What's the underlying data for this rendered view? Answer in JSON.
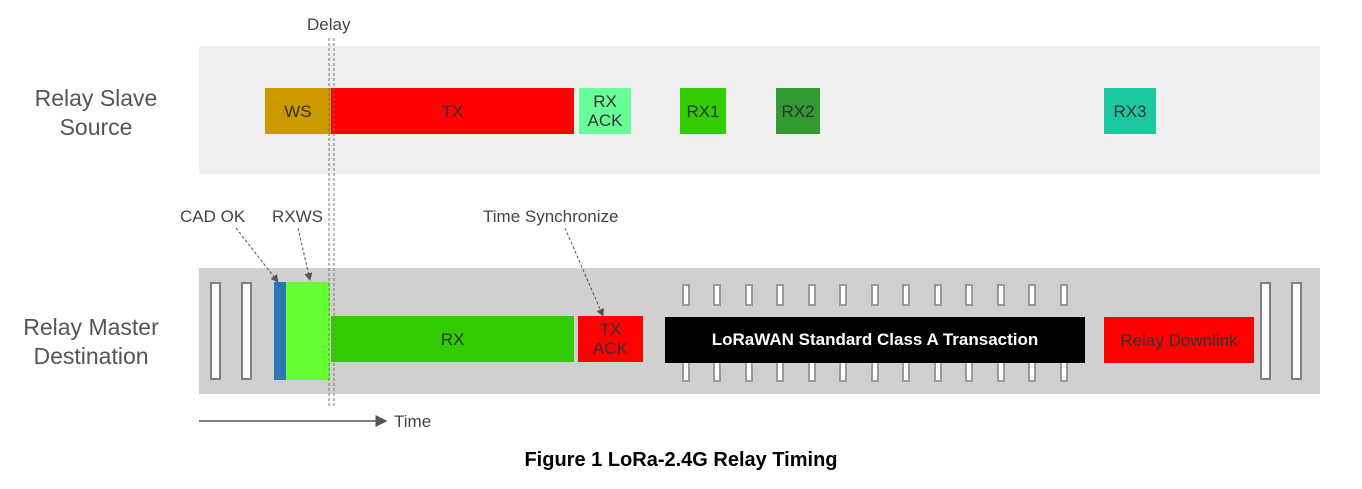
{
  "lanes": {
    "slave_label": "Relay Slave\nSource",
    "master_label": "Relay Master\nDestination"
  },
  "slave_boxes": {
    "ws": "WS",
    "tx": "TX",
    "rx_ack": "RX\nACK",
    "rx1": "RX1",
    "rx2": "RX2",
    "rx3": "RX3"
  },
  "master_boxes": {
    "rx": "RX",
    "tx_ack": "TX\nACK",
    "lorawan": "LoRaWAN Standard Class A Transaction",
    "relay_downlink": "Relay Downlink"
  },
  "callouts": {
    "delay": "Delay",
    "cad_ok": "CAD OK",
    "rxws": "RXWS",
    "time_sync": "Time Synchronize"
  },
  "axis": {
    "time": "Time"
  },
  "caption": "Figure 1 LoRa-2.4G Relay Timing",
  "colors": {
    "ws": "#cc9900",
    "tx": "#ff0000",
    "rx_ack": "#66ff99",
    "rx1": "#33cc00",
    "rx2": "#339933",
    "rx3": "#1dc8a0",
    "master_rx": "#33cc00",
    "rxws": "#66ff33",
    "cad": "#2e75b6",
    "lorawan": "#000000"
  }
}
